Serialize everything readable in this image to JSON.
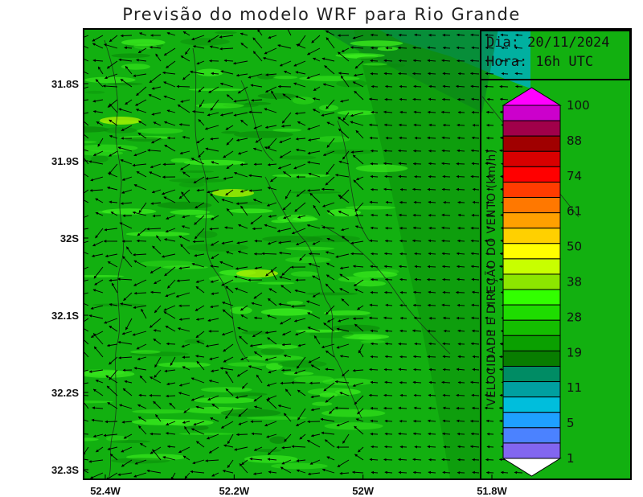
{
  "title": "Previsão do modelo WRF para Rio Grande",
  "info": {
    "day_label": "Dia: 20/11/2024",
    "hour_label": "Hora: 16h UTC"
  },
  "axes": {
    "lat_labels": [
      "31.8S",
      "31.9S",
      "32S",
      "32.1S",
      "32.2S",
      "32.3S"
    ],
    "lat_values": [
      -31.8,
      -31.9,
      -32.0,
      -32.1,
      -32.2,
      -32.3
    ],
    "lon_labels": [
      "52.4W",
      "52.2W",
      "52W",
      "51.8W"
    ],
    "lon_values": [
      -52.4,
      -52.2,
      -52.0,
      -51.8
    ]
  },
  "colorbar": {
    "title": "VELOCIDADE E DIREÇÃO DO VENTO (km/h)",
    "labels": [
      "100",
      "88",
      "74",
      "61",
      "50",
      "38",
      "28",
      "19",
      "11",
      "5",
      "1"
    ],
    "colors": [
      "#cc00cc",
      "#a0004a",
      "#a00000",
      "#d80000",
      "#ff0000",
      "#ff3c00",
      "#ff7800",
      "#ffa000",
      "#ffd000",
      "#ffff00",
      "#c8ff00",
      "#8ce600",
      "#32ff00",
      "#1edc00",
      "#14be00",
      "#0aa000",
      "#087d00",
      "#008c64",
      "#00a0a0",
      "#00bedc",
      "#1ea0ff",
      "#4b82ff",
      "#8266f0"
    ],
    "top_cap_color": "#ff00ff"
  },
  "palette": {
    "field_base": "#12b010",
    "field_bright": "#3cee1e",
    "field_dark": "#0a8a0a",
    "calm_cyan": "#00b0b0"
  }
}
